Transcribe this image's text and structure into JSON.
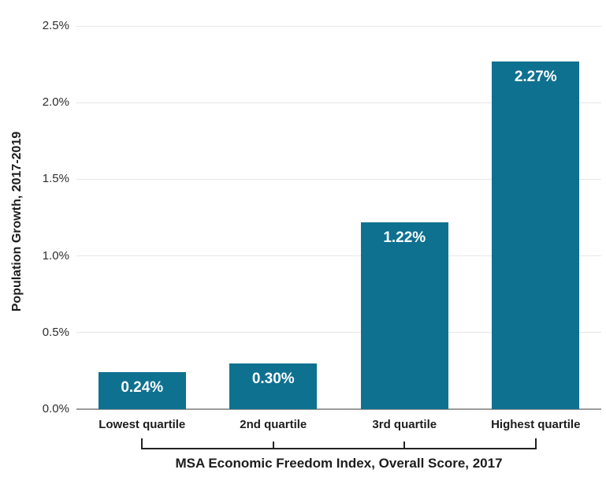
{
  "chart_data": {
    "type": "bar",
    "categories": [
      "Lowest quartile",
      "2nd quartile",
      "3rd quartile",
      "Highest quartile"
    ],
    "values": [
      0.24,
      0.3,
      1.22,
      2.27
    ],
    "bar_labels": [
      "0.24%",
      "0.30%",
      "1.22%",
      "2.27%"
    ],
    "title": "",
    "ylabel": "Population Growth, 2017-2019",
    "xlabel": "MSA Economic Freedom Index, Overall Score, 2017",
    "ylim": [
      0,
      2.5
    ],
    "yticks": [
      {
        "value": 0.0,
        "label": "0.0%"
      },
      {
        "value": 0.5,
        "label": "0.5%"
      },
      {
        "value": 1.0,
        "label": "1.0%"
      },
      {
        "value": 1.5,
        "label": "1.5%"
      },
      {
        "value": 2.0,
        "label": "2.0%"
      },
      {
        "value": 2.5,
        "label": "2.5%"
      }
    ],
    "grid": true,
    "legend": "none",
    "colors": {
      "background": "#ffffff",
      "bar": "#0e7190",
      "bar_label": "#ffffff",
      "gridline": "#e6e6e6",
      "axis_line": "#9b9b9b",
      "text": "#1d1d1d",
      "bracket": "#222222"
    }
  }
}
